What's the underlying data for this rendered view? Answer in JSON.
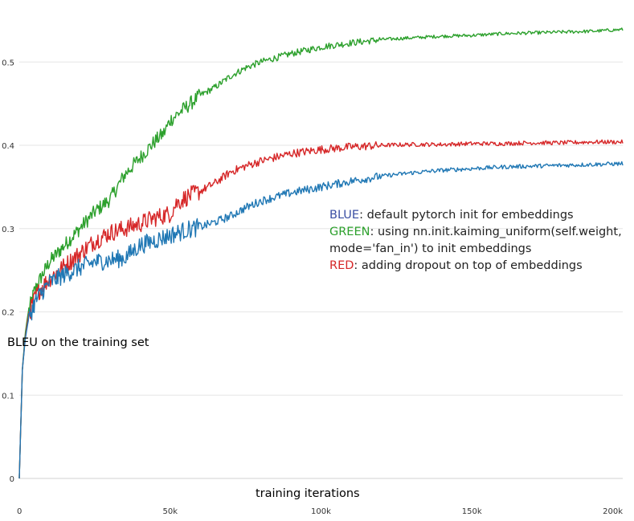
{
  "chart_data": {
    "type": "line",
    "title": "",
    "xlabel": "training iterations",
    "ylabel": "BLEU on the training set",
    "xlim": [
      0,
      200000
    ],
    "ylim": [
      0,
      0.56
    ],
    "x_ticks": [
      0,
      50000,
      100000,
      150000,
      200000
    ],
    "x_tick_labels": [
      "0",
      "50k",
      "100k",
      "150k",
      "200k"
    ],
    "y_ticks": [
      0,
      0.1,
      0.2,
      0.3,
      0.4,
      0.5
    ],
    "y_tick_labels": [
      "0",
      "0.1",
      "0.2",
      "0.3",
      "0.4",
      "0.5"
    ],
    "grid": true,
    "legend_text": [
      {
        "key": "BLUE",
        "text": ": default pytorch init for embeddings",
        "color": "#3a4fa3"
      },
      {
        "key": "GREEN",
        "text": ": using nn.init.kaiming_uniform(self.weight,",
        "color": "#2ca02c"
      },
      {
        "key": "",
        "text": "mode='fan_in') to init embeddings",
        "color": "#222222"
      },
      {
        "key": "RED",
        "text": ": adding dropout on top of embeddings",
        "color": "#d62728"
      }
    ],
    "legend_position": "center-right",
    "series": [
      {
        "color": "#2ca02c",
        "x": [
          0,
          1000,
          2000,
          3000,
          5000,
          7000,
          10000,
          15000,
          20000,
          25000,
          30000,
          35000,
          40000,
          45000,
          48000,
          50000,
          55000,
          60000,
          65000,
          70000,
          75000,
          80000,
          90000,
          100000,
          110000,
          120000,
          130000,
          140000,
          150000,
          160000,
          170000,
          180000,
          190000,
          200000
        ],
        "y": [
          0,
          0.13,
          0.175,
          0.2,
          0.225,
          0.24,
          0.26,
          0.28,
          0.3,
          0.32,
          0.335,
          0.365,
          0.385,
          0.405,
          0.415,
          0.43,
          0.445,
          0.46,
          0.47,
          0.483,
          0.493,
          0.5,
          0.51,
          0.518,
          0.523,
          0.527,
          0.529,
          0.531,
          0.532,
          0.534,
          0.535,
          0.536,
          0.537,
          0.539
        ],
        "noise": 0.004
      },
      {
        "color": "#d62728",
        "x": [
          0,
          1000,
          2000,
          3000,
          5000,
          7000,
          10000,
          15000,
          20000,
          25000,
          30000,
          35000,
          40000,
          45000,
          50000,
          52000,
          55000,
          60000,
          65000,
          70000,
          75000,
          80000,
          90000,
          100000,
          110000,
          120000,
          130000,
          140000,
          150000,
          160000,
          170000,
          180000,
          190000,
          200000
        ],
        "y": [
          0,
          0.13,
          0.17,
          0.195,
          0.215,
          0.228,
          0.24,
          0.255,
          0.27,
          0.285,
          0.295,
          0.3,
          0.306,
          0.313,
          0.318,
          0.33,
          0.337,
          0.345,
          0.355,
          0.368,
          0.375,
          0.381,
          0.39,
          0.395,
          0.398,
          0.4,
          0.401,
          0.401,
          0.402,
          0.402,
          0.403,
          0.403,
          0.404,
          0.404
        ],
        "noise": 0.005
      },
      {
        "color": "#1f77b4",
        "x": [
          0,
          1000,
          2000,
          3000,
          5000,
          7000,
          10000,
          15000,
          20000,
          25000,
          30000,
          35000,
          40000,
          45000,
          50000,
          55000,
          60000,
          65000,
          70000,
          75000,
          80000,
          90000,
          100000,
          110000,
          120000,
          130000,
          140000,
          150000,
          160000,
          170000,
          180000,
          190000,
          200000
        ],
        "y": [
          0,
          0.13,
          0.168,
          0.19,
          0.21,
          0.222,
          0.235,
          0.245,
          0.253,
          0.26,
          0.262,
          0.265,
          0.28,
          0.286,
          0.292,
          0.298,
          0.302,
          0.308,
          0.315,
          0.325,
          0.333,
          0.343,
          0.35,
          0.357,
          0.363,
          0.367,
          0.37,
          0.372,
          0.374,
          0.375,
          0.376,
          0.377,
          0.378
        ],
        "noise": 0.005
      }
    ]
  }
}
